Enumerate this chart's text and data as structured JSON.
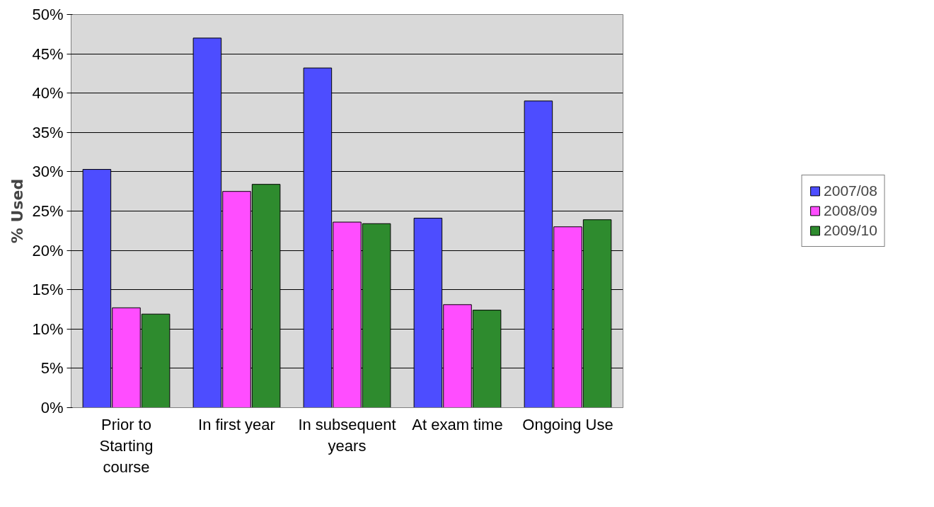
{
  "chart_data": {
    "type": "bar",
    "ylabel": "% Used",
    "categories": [
      "Prior to Starting course",
      "In first year",
      "In subsequent years",
      "At exam time",
      "Ongoing Use"
    ],
    "series": [
      {
        "name": "2007/08",
        "color": "#4d4dff",
        "values": [
          30.3,
          47.0,
          43.2,
          24.1,
          39.0
        ]
      },
      {
        "name": "2008/09",
        "color": "#ff4dff",
        "values": [
          12.7,
          27.5,
          23.6,
          13.1,
          23.0
        ]
      },
      {
        "name": "2009/10",
        "color": "#2e8b2e",
        "values": [
          11.9,
          28.4,
          23.4,
          12.4,
          23.9
        ]
      }
    ],
    "ylim": [
      0,
      50
    ],
    "yticks": [
      {
        "value": 0,
        "label": "0%"
      },
      {
        "value": 5,
        "label": "5%"
      },
      {
        "value": 10,
        "label": "10%"
      },
      {
        "value": 15,
        "label": "15%"
      },
      {
        "value": 20,
        "label": "20%"
      },
      {
        "value": 25,
        "label": "25%"
      },
      {
        "value": 30,
        "label": "30%"
      },
      {
        "value": 35,
        "label": "35%"
      },
      {
        "value": 40,
        "label": "40%"
      },
      {
        "value": 45,
        "label": "45%"
      },
      {
        "value": 50,
        "label": "50%"
      }
    ],
    "grid": "y",
    "legend": "right"
  }
}
